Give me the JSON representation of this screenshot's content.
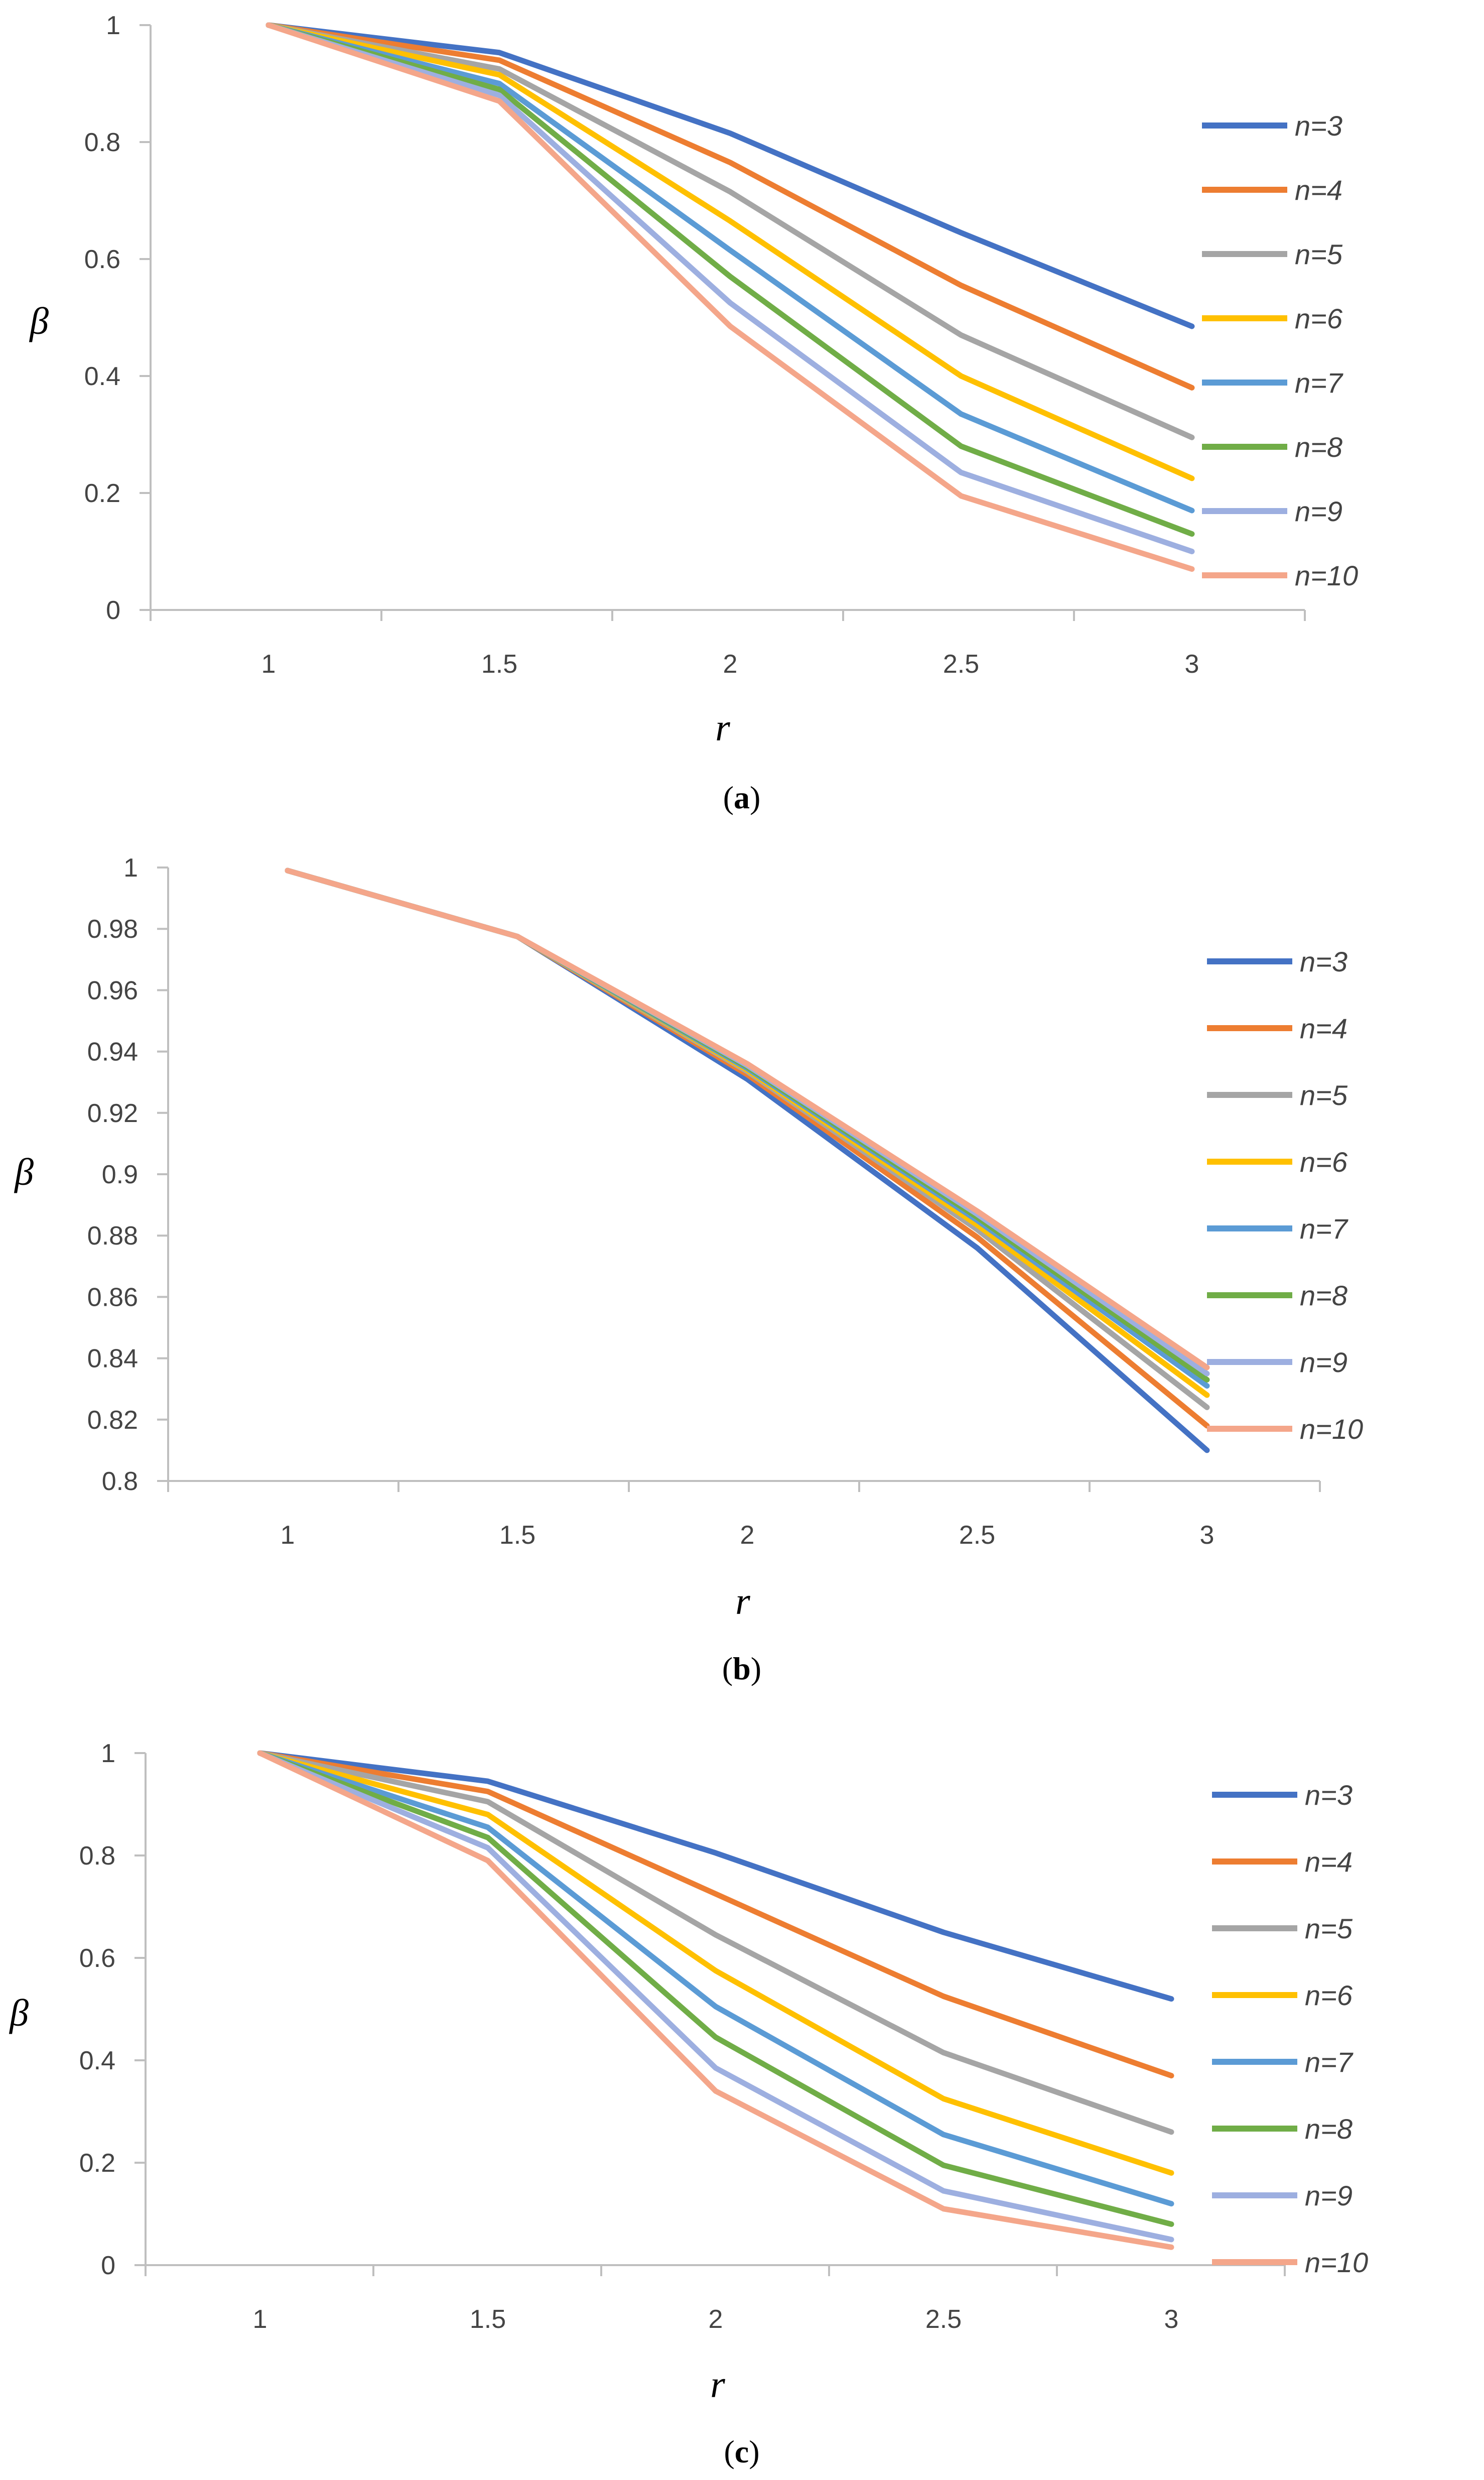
{
  "chart_data": [
    {
      "type": "line",
      "caption": "(a)",
      "caption_letter": "a",
      "xlabel": "r",
      "ylabel": "β",
      "x": [
        1,
        1.5,
        2,
        2.5,
        3
      ],
      "x_tick_labels": [
        "1",
        "1.5",
        "2",
        "2.5",
        "3"
      ],
      "ylim": [
        0,
        1
      ],
      "y_tick_labels": [
        "0",
        "0.2",
        "0.4",
        "0.6",
        "0.8",
        "1"
      ],
      "legend_position": "right",
      "series": [
        {
          "name": "n=3",
          "color": "#4472C4",
          "values": [
            1,
            0.953,
            0.815,
            0.645,
            0.485
          ]
        },
        {
          "name": "n=4",
          "color": "#ED7D31",
          "values": [
            1,
            0.94,
            0.765,
            0.555,
            0.38
          ]
        },
        {
          "name": "n=5",
          "color": "#A5A5A5",
          "values": [
            1,
            0.925,
            0.715,
            0.47,
            0.295
          ]
        },
        {
          "name": "n=6",
          "color": "#FFC000",
          "values": [
            1,
            0.915,
            0.665,
            0.4,
            0.225
          ]
        },
        {
          "name": "n=7",
          "color": "#5B9BD5",
          "values": [
            1,
            0.9,
            0.615,
            0.335,
            0.17
          ]
        },
        {
          "name": "n=8",
          "color": "#70AD47",
          "values": [
            1,
            0.89,
            0.57,
            0.28,
            0.13
          ]
        },
        {
          "name": "n=9",
          "color": "#9DAFE0",
          "values": [
            1,
            0.88,
            0.525,
            0.235,
            0.1
          ]
        },
        {
          "name": "n=10",
          "color": "#F4A68A",
          "values": [
            1,
            0.87,
            0.485,
            0.195,
            0.07
          ]
        }
      ]
    },
    {
      "type": "line",
      "caption": "(b)",
      "caption_letter": "b",
      "xlabel": "r",
      "ylabel": "β",
      "x": [
        1,
        1.5,
        2,
        2.5,
        3
      ],
      "x_tick_labels": [
        "1",
        "1.5",
        "2",
        "2.5",
        "3"
      ],
      "ylim": [
        0.8,
        1
      ],
      "y_tick_labels": [
        "0.8",
        "0.82",
        "0.84",
        "0.86",
        "0.88",
        "0.9",
        "0.92",
        "0.94",
        "0.96",
        "0.98",
        "1"
      ],
      "legend_position": "right",
      "series": [
        {
          "name": "n=3",
          "color": "#4472C4",
          "values": [
            0.999,
            0.9775,
            0.931,
            0.876,
            0.81
          ]
        },
        {
          "name": "n=4",
          "color": "#ED7D31",
          "values": [
            0.999,
            0.9775,
            0.9325,
            0.8795,
            0.818
          ]
        },
        {
          "name": "n=5",
          "color": "#A5A5A5",
          "values": [
            0.999,
            0.9775,
            0.9335,
            0.882,
            0.824
          ]
        },
        {
          "name": "n=6",
          "color": "#FFC000",
          "values": [
            0.999,
            0.9775,
            0.934,
            0.8835,
            0.828
          ]
        },
        {
          "name": "n=7",
          "color": "#5B9BD5",
          "values": [
            0.999,
            0.9775,
            0.9345,
            0.885,
            0.831
          ]
        },
        {
          "name": "n=8",
          "color": "#70AD47",
          "values": [
            0.999,
            0.9775,
            0.935,
            0.886,
            0.833
          ]
        },
        {
          "name": "n=9",
          "color": "#9DAFE0",
          "values": [
            0.999,
            0.9775,
            0.9355,
            0.887,
            0.835
          ]
        },
        {
          "name": "n=10",
          "color": "#F4A68A",
          "values": [
            0.999,
            0.9775,
            0.936,
            0.888,
            0.837
          ]
        }
      ]
    },
    {
      "type": "line",
      "caption": "(c)",
      "caption_letter": "c",
      "xlabel": "r",
      "ylabel": "β",
      "x": [
        1,
        1.5,
        2,
        2.5,
        3
      ],
      "x_tick_labels": [
        "1",
        "1.5",
        "2",
        "2.5",
        "3"
      ],
      "ylim": [
        0,
        1
      ],
      "y_tick_labels": [
        "0",
        "0.2",
        "0.4",
        "0.6",
        "0.8",
        "1"
      ],
      "legend_position": "right",
      "series": [
        {
          "name": "n=3",
          "color": "#4472C4",
          "values": [
            1,
            0.945,
            0.805,
            0.65,
            0.52
          ]
        },
        {
          "name": "n=4",
          "color": "#ED7D31",
          "values": [
            1,
            0.925,
            0.725,
            0.525,
            0.37
          ]
        },
        {
          "name": "n=5",
          "color": "#A5A5A5",
          "values": [
            1,
            0.905,
            0.645,
            0.415,
            0.26
          ]
        },
        {
          "name": "n=6",
          "color": "#FFC000",
          "values": [
            1,
            0.88,
            0.575,
            0.325,
            0.18
          ]
        },
        {
          "name": "n=7",
          "color": "#5B9BD5",
          "values": [
            1,
            0.855,
            0.505,
            0.255,
            0.12
          ]
        },
        {
          "name": "n=8",
          "color": "#70AD47",
          "values": [
            1,
            0.835,
            0.445,
            0.195,
            0.08
          ]
        },
        {
          "name": "n=9",
          "color": "#9DAFE0",
          "values": [
            1,
            0.815,
            0.385,
            0.145,
            0.05
          ]
        },
        {
          "name": "n=10",
          "color": "#F4A68A",
          "values": [
            1,
            0.79,
            0.34,
            0.11,
            0.035
          ]
        }
      ]
    }
  ]
}
